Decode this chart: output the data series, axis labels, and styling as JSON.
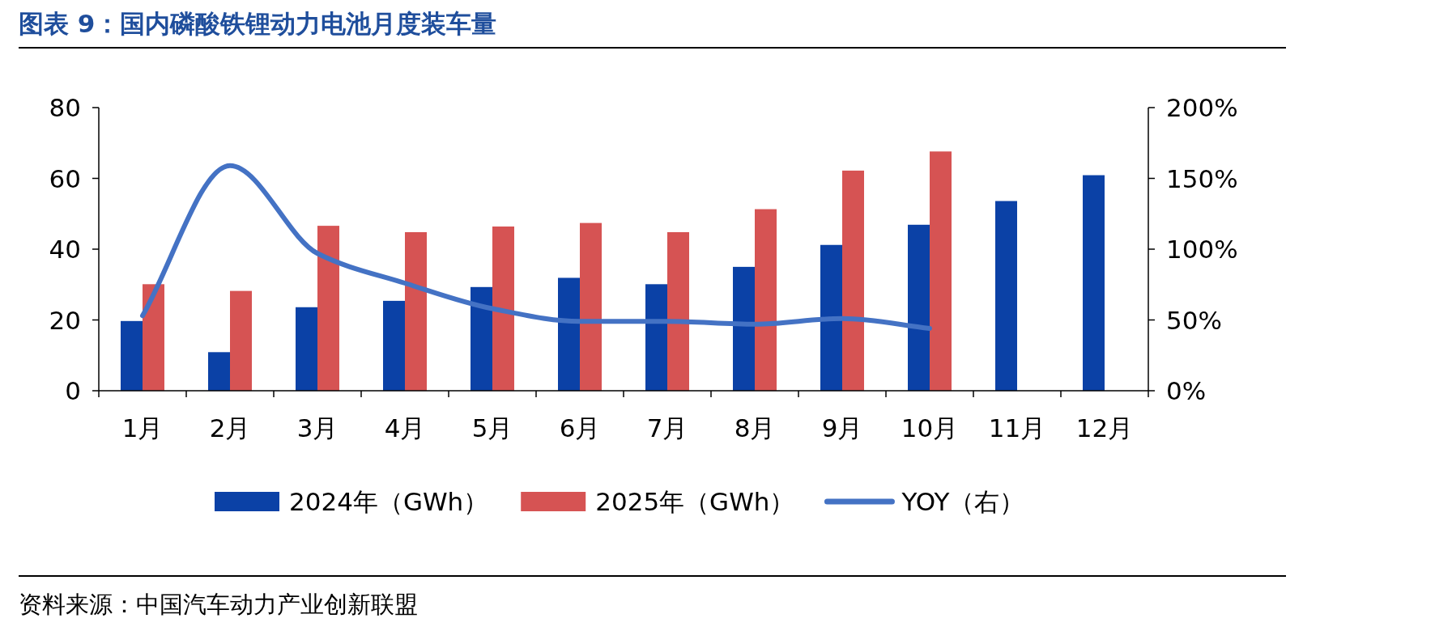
{
  "chart_data": {
    "type": "bar",
    "title": "图表 9：国内磷酸铁锂动力电池月度装车量",
    "categories": [
      "1月",
      "2月",
      "3月",
      "4月",
      "5月",
      "6月",
      "7月",
      "8月",
      "9月",
      "10月",
      "11月",
      "12月"
    ],
    "series": [
      {
        "name": "2024年（GWh）",
        "color": "#0b41a6",
        "values": [
          19.7,
          10.9,
          23.6,
          25.4,
          29.3,
          31.9,
          30.1,
          35.0,
          41.2,
          46.9,
          53.6,
          60.9
        ]
      },
      {
        "name": "2025年（GWh）",
        "color": "#d65353",
        "values": [
          30.1,
          28.2,
          46.6,
          44.8,
          46.4,
          47.4,
          44.8,
          51.3,
          62.2,
          67.6,
          null,
          null
        ]
      },
      {
        "name": "YOY（右）",
        "type": "line",
        "axis": "y2",
        "color": "#4472c4",
        "values": [
          53,
          159,
          97,
          76,
          58,
          49,
          49,
          47,
          51,
          44,
          null,
          null
        ]
      }
    ],
    "ylim": [
      0,
      80
    ],
    "yticks": [
      0,
      20,
      40,
      60,
      80
    ],
    "y2lim": [
      0,
      200
    ],
    "y2ticks": [
      {
        "value": 0,
        "label": "0%"
      },
      {
        "value": 50,
        "label": "50%"
      },
      {
        "value": 100,
        "label": "100%"
      },
      {
        "value": 150,
        "label": "150%"
      },
      {
        "value": 200,
        "label": "200%"
      }
    ],
    "grid": false,
    "legend": "bottom",
    "annotations": [
      "资料来源：中国汽车动力产业创新联盟"
    ]
  }
}
